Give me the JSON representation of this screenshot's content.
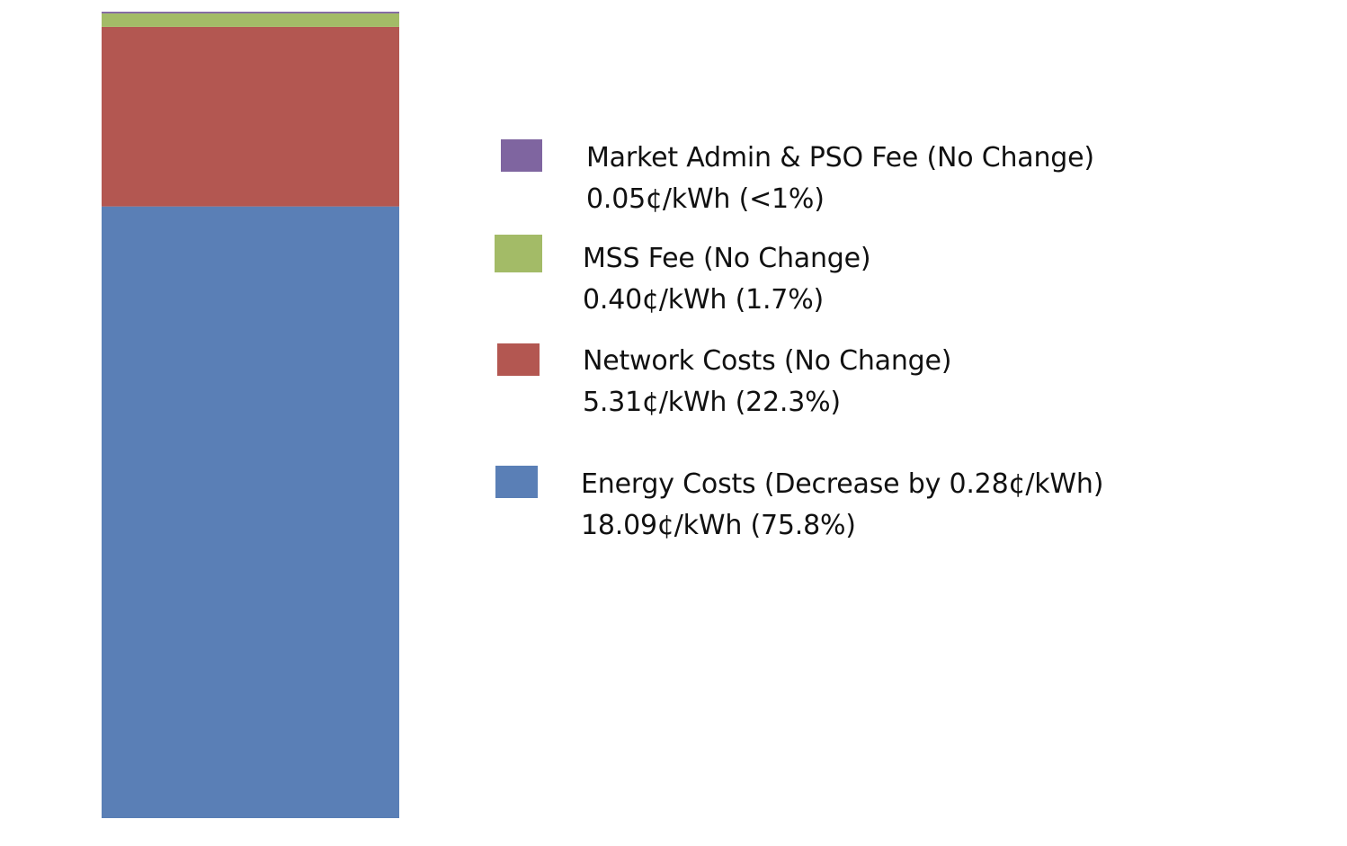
{
  "chart_data": {
    "type": "bar",
    "stacked": true,
    "unit": "¢/kWh",
    "categories": [
      ""
    ],
    "series": [
      {
        "name": "Energy Costs (Decrease by 0.28¢/kWh)",
        "value_label": "18.09¢/kWh (75.8%)",
        "values": [
          18.09
        ],
        "color": "#5a7fb6"
      },
      {
        "name": "Network Costs (No Change)",
        "value_label": "5.31¢/kWh (22.3%)",
        "values": [
          5.31
        ],
        "color": "#b35751"
      },
      {
        "name": "MSS Fee (No Change)",
        "value_label": "0.40¢/kWh (1.7%)",
        "values": [
          0.4
        ],
        "color": "#a3bb67"
      },
      {
        "name": "Market Admin & PSO Fee (No Change)",
        "value_label": "0.05¢/kWh (<1%)",
        "values": [
          0.05
        ],
        "color": "#7f65a0"
      }
    ],
    "legend_order": [
      3,
      2,
      1,
      0
    ],
    "legend_placement": "right",
    "title": "",
    "xlabel": "",
    "ylabel": "",
    "grid": false,
    "axes_visible": false
  }
}
